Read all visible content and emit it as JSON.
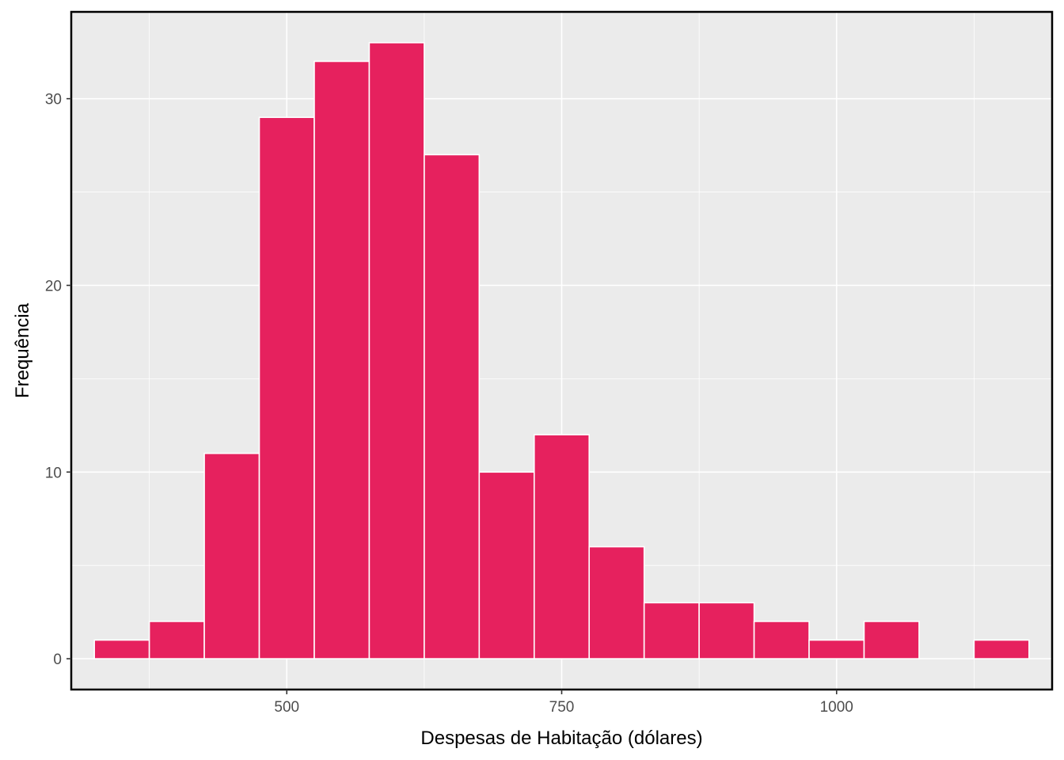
{
  "chart_data": {
    "type": "bar",
    "subtype": "histogram",
    "xlabel": "Despesas de Habitação (dólares)",
    "ylabel": "Frequência",
    "bin_width": 50,
    "bins": [
      {
        "x0": 325,
        "x1": 375,
        "count": 1
      },
      {
        "x0": 375,
        "x1": 425,
        "count": 2
      },
      {
        "x0": 425,
        "x1": 475,
        "count": 11
      },
      {
        "x0": 475,
        "x1": 525,
        "count": 29
      },
      {
        "x0": 525,
        "x1": 575,
        "count": 32
      },
      {
        "x0": 575,
        "x1": 625,
        "count": 33
      },
      {
        "x0": 625,
        "x1": 675,
        "count": 27
      },
      {
        "x0": 675,
        "x1": 725,
        "count": 10
      },
      {
        "x0": 725,
        "x1": 775,
        "count": 12
      },
      {
        "x0": 775,
        "x1": 825,
        "count": 6
      },
      {
        "x0": 825,
        "x1": 875,
        "count": 3
      },
      {
        "x0": 875,
        "x1": 925,
        "count": 3
      },
      {
        "x0": 925,
        "x1": 975,
        "count": 2
      },
      {
        "x0": 975,
        "x1": 1025,
        "count": 1
      },
      {
        "x0": 1025,
        "x1": 1075,
        "count": 2
      },
      {
        "x0": 1075,
        "x1": 1125,
        "count": 0
      },
      {
        "x0": 1125,
        "x1": 1175,
        "count": 1
      }
    ],
    "xlim": [
      304,
      1196
    ],
    "ylim": [
      -1.65,
      34.65
    ],
    "x_ticks": [
      500,
      750,
      1000
    ],
    "x_tick_labels": [
      "500",
      "750",
      "1000"
    ],
    "x_minor_grid": [
      375,
      625,
      875,
      1125
    ],
    "y_ticks": [
      0,
      10,
      20,
      30
    ],
    "y_tick_labels": [
      "0",
      "10",
      "20",
      "30"
    ],
    "y_minor_grid": [
      5,
      15,
      25
    ],
    "grid": true,
    "legend": "none",
    "colors": {
      "bar_fill": "#E6215E",
      "bar_outline": "#FFFFFF",
      "panel_background": "#EBEBEB",
      "grid": "#FFFFFF",
      "panel_border": "#000000",
      "tick_text": "#4D4D4D",
      "axis_title": "#000000"
    }
  }
}
